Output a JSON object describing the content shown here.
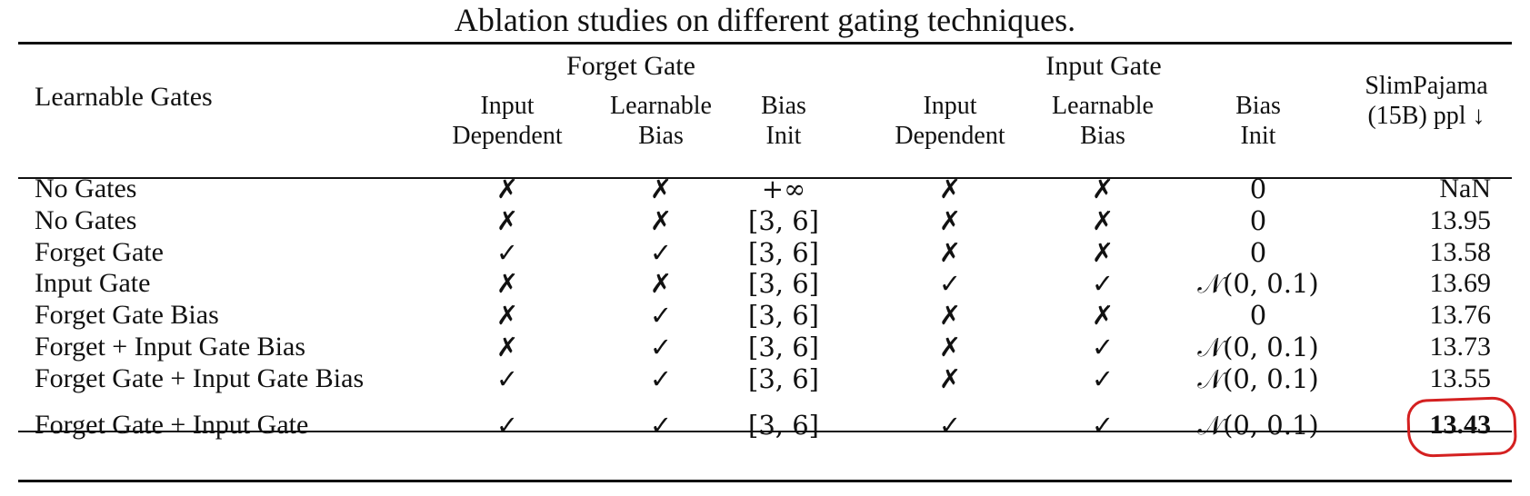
{
  "caption": "Ablation studies on different gating techniques.",
  "header": {
    "row_label": "Learnable Gates",
    "forget_group": "Forget Gate",
    "input_group": "Input Gate",
    "sub": {
      "input_dependent": [
        "Input",
        "Dependent"
      ],
      "learnable_bias": [
        "Learnable",
        "Bias"
      ],
      "bias_init": [
        "Bias",
        "Init"
      ]
    },
    "metric": [
      "SlimPajama",
      "(15B) ppl ↓"
    ]
  },
  "rows": [
    {
      "name": "No Gates",
      "f_dep": "✗",
      "f_lb": "✗",
      "f_init": "+∞",
      "i_dep": "✗",
      "i_lb": "✗",
      "i_init": "0",
      "ppl": "NaN"
    },
    {
      "name": "No Gates",
      "f_dep": "✗",
      "f_lb": "✗",
      "f_init": "[3, 6]",
      "i_dep": "✗",
      "i_lb": "✗",
      "i_init": "0",
      "ppl": "13.95"
    },
    {
      "name": "Forget Gate",
      "f_dep": "✓",
      "f_lb": "✓",
      "f_init": "[3, 6]",
      "i_dep": "✗",
      "i_lb": "✗",
      "i_init": "0",
      "ppl": "13.58"
    },
    {
      "name": "Input Gate",
      "f_dep": "✗",
      "f_lb": "✗",
      "f_init": "[3, 6]",
      "i_dep": "✓",
      "i_lb": "✓",
      "i_init": "𝒩(0, 0.1)",
      "ppl": "13.69"
    },
    {
      "name": "Forget Gate Bias",
      "f_dep": "✗",
      "f_lb": "✓",
      "f_init": "[3, 6]",
      "i_dep": "✗",
      "i_lb": "✗",
      "i_init": "0",
      "ppl": "13.76"
    },
    {
      "name": "Forget + Input Gate Bias",
      "f_dep": "✗",
      "f_lb": "✓",
      "f_init": "[3, 6]",
      "i_dep": "✗",
      "i_lb": "✓",
      "i_init": "𝒩(0, 0.1)",
      "ppl": "13.73"
    },
    {
      "name": "Forget Gate + Input Gate Bias",
      "f_dep": "✓",
      "f_lb": "✓",
      "f_init": "[3, 6]",
      "i_dep": "✗",
      "i_lb": "✓",
      "i_init": "𝒩(0, 0.1)",
      "ppl": "13.55"
    }
  ],
  "final_row": {
    "name": "Forget Gate + Input Gate",
    "f_dep": "✓",
    "f_lb": "✓",
    "f_init": "[3, 6]",
    "i_dep": "✓",
    "i_lb": "✓",
    "i_init": "𝒩(0, 0.1)",
    "ppl": "13.43"
  },
  "highlight_color": "#d42020"
}
